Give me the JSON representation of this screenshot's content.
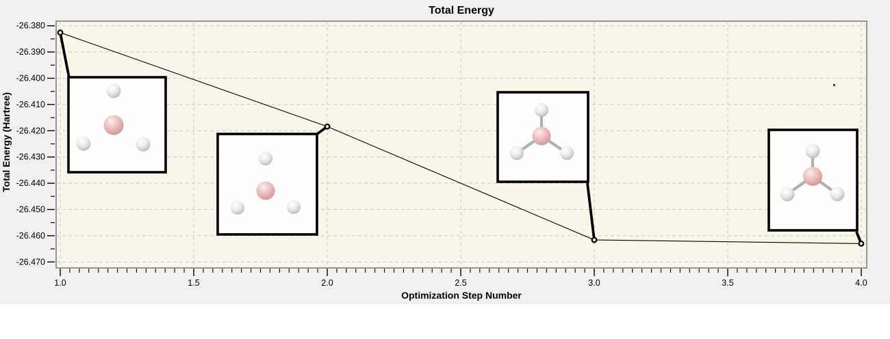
{
  "chart_data": {
    "type": "line",
    "title": "Total Energy",
    "xlabel": "Optimization Step Number",
    "ylabel": "Total Energy (Hartree)",
    "x": [
      1.0,
      2.0,
      3.0,
      4.0
    ],
    "y": [
      -26.3826,
      -26.4184,
      -26.4616,
      -26.463
    ],
    "xlim": [
      1.0,
      4.0
    ],
    "ylim": [
      -26.47,
      -26.38
    ],
    "x_ticks": [
      1.0,
      1.5,
      2.0,
      2.5,
      3.0,
      3.5,
      4.0
    ],
    "x_tick_labels": [
      "1.0",
      "1.5",
      "2.0",
      "2.5",
      "3.0",
      "3.5",
      "4.0"
    ],
    "y_ticks": [
      -26.38,
      -26.39,
      -26.4,
      -26.41,
      -26.42,
      -26.43,
      -26.44,
      -26.45,
      -26.46,
      -26.47
    ],
    "y_tick_labels": [
      "-26.380",
      "-26.390",
      "-26.400",
      "-26.410",
      "-26.420",
      "-26.430",
      "-26.440",
      "-26.450",
      "-26.460",
      "-26.470"
    ],
    "grid": true,
    "legend": false,
    "marker": "open-circle",
    "line_color": "#000000",
    "plot_bg": "#f8f6e9",
    "insets": [
      {
        "name": "molecule-step-1",
        "step": 1,
        "bonds": false,
        "atoms": "1 pink central atom with 3 white atoms, widely separated, no bonds"
      },
      {
        "name": "molecule-step-2",
        "step": 2,
        "bonds": false,
        "atoms": "1 pink central atom with 3 white atoms, closer together, no bonds"
      },
      {
        "name": "molecule-step-3",
        "step": 3,
        "bonds": true,
        "atoms": "trigonal planar molecule: pink center bonded to 3 white atoms"
      },
      {
        "name": "molecule-step-4",
        "step": 4,
        "bonds": true,
        "atoms": "trigonal planar molecule: pink center bonded to 3 white atoms"
      }
    ]
  },
  "colors": {
    "page_bg": "#ffffff",
    "widget_bg": "#f0f0f0",
    "grid": "#ccccbf",
    "plot_border": "#7d7d7d",
    "tick": "#000000",
    "inset_bg": "#fdfdfd",
    "inset_border": "#000000",
    "bond_gray": "#b0b0b0",
    "boron_pink": "#eec3c3",
    "hydrogen_white": "#ebebeb"
  }
}
